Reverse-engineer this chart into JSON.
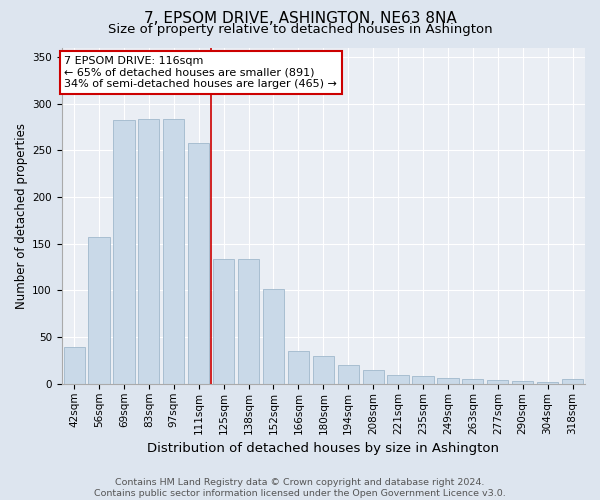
{
  "title": "7, EPSOM DRIVE, ASHINGTON, NE63 8NA",
  "subtitle": "Size of property relative to detached houses in Ashington",
  "xlabel": "Distribution of detached houses by size in Ashington",
  "ylabel": "Number of detached properties",
  "bar_labels": [
    "42sqm",
    "56sqm",
    "69sqm",
    "83sqm",
    "97sqm",
    "111sqm",
    "125sqm",
    "138sqm",
    "152sqm",
    "166sqm",
    "180sqm",
    "194sqm",
    "208sqm",
    "221sqm",
    "235sqm",
    "249sqm",
    "263sqm",
    "277sqm",
    "290sqm",
    "304sqm",
    "318sqm"
  ],
  "bar_values": [
    40,
    157,
    282,
    283,
    283,
    258,
    134,
    134,
    102,
    35,
    30,
    20,
    15,
    10,
    8,
    6,
    5,
    4,
    3,
    2,
    5
  ],
  "bar_color": "#c9d9e8",
  "bar_edge_color": "#a0b8cc",
  "vline_x": 5.5,
  "vline_color": "#cc0000",
  "annotation_text": "7 EPSOM DRIVE: 116sqm\n← 65% of detached houses are smaller (891)\n34% of semi-detached houses are larger (465) →",
  "annotation_box_color": "#ffffff",
  "annotation_box_edge": "#cc0000",
  "ylim": [
    0,
    360
  ],
  "yticks": [
    0,
    50,
    100,
    150,
    200,
    250,
    300,
    350
  ],
  "footnote": "Contains HM Land Registry data © Crown copyright and database right 2024.\nContains public sector information licensed under the Open Government Licence v3.0.",
  "bg_color": "#dde5ef",
  "plot_bg_color": "#eaeef4",
  "title_fontsize": 11,
  "subtitle_fontsize": 9.5,
  "xlabel_fontsize": 9.5,
  "ylabel_fontsize": 8.5,
  "tick_fontsize": 7.5,
  "annotation_fontsize": 8,
  "footnote_fontsize": 6.8
}
